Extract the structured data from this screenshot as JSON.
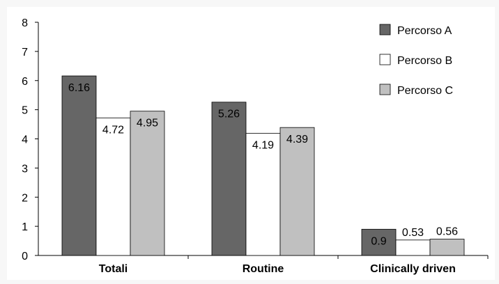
{
  "chart_data": {
    "type": "bar",
    "categories": [
      "Totali",
      "Routine",
      "Clinically driven"
    ],
    "series": [
      {
        "name": "Percorso A",
        "values": [
          6.16,
          5.26,
          0.9
        ],
        "labels": [
          "6.16",
          "5.26",
          "0.9"
        ],
        "color": "#666666"
      },
      {
        "name": "Percorso B",
        "values": [
          4.72,
          4.19,
          0.53
        ],
        "labels": [
          "4.72",
          "4.19",
          "0.53"
        ],
        "color": "#ffffff"
      },
      {
        "name": "Percorso C",
        "values": [
          4.95,
          4.39,
          0.56
        ],
        "labels": [
          "4.95",
          "4.39",
          "0.56"
        ],
        "color": "#c0c0c0"
      }
    ],
    "ylim": [
      0,
      8
    ],
    "yticks": [
      "0",
      "1",
      "2",
      "3",
      "4",
      "5",
      "6",
      "7",
      "8"
    ],
    "legend_position": "top-right",
    "grid": false
  }
}
